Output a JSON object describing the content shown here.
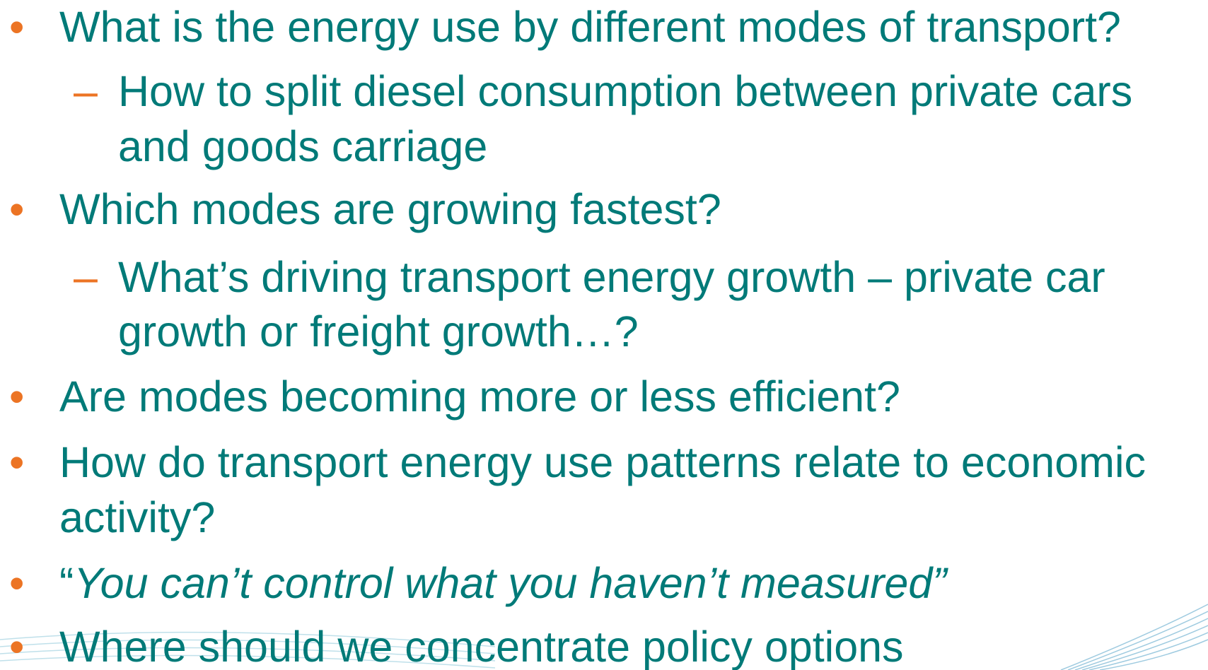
{
  "bullets": [
    {
      "level": 1,
      "lines": [
        "What is the energy use by different modes of transport?"
      ]
    },
    {
      "level": 2,
      "lines": [
        "How to split diesel consumption between private cars",
        "and goods carriage"
      ]
    },
    {
      "level": 1,
      "lines": [
        "Which modes are growing fastest?"
      ]
    },
    {
      "level": 2,
      "lines": [
        "What’s driving transport energy growth – private car",
        "growth or freight growth…?"
      ]
    },
    {
      "level": 1,
      "lines": [
        "Are modes becoming more or less efficient?"
      ]
    },
    {
      "level": 1,
      "lines": [
        "How do transport energy use patterns relate to economic",
        "activity?"
      ]
    },
    {
      "level": 1,
      "quote": true,
      "lines": [
        "“",
        "You can’t control what you haven’t measured”"
      ]
    },
    {
      "level": 1,
      "lines": [
        "Where should we concentrate policy options"
      ]
    }
  ]
}
